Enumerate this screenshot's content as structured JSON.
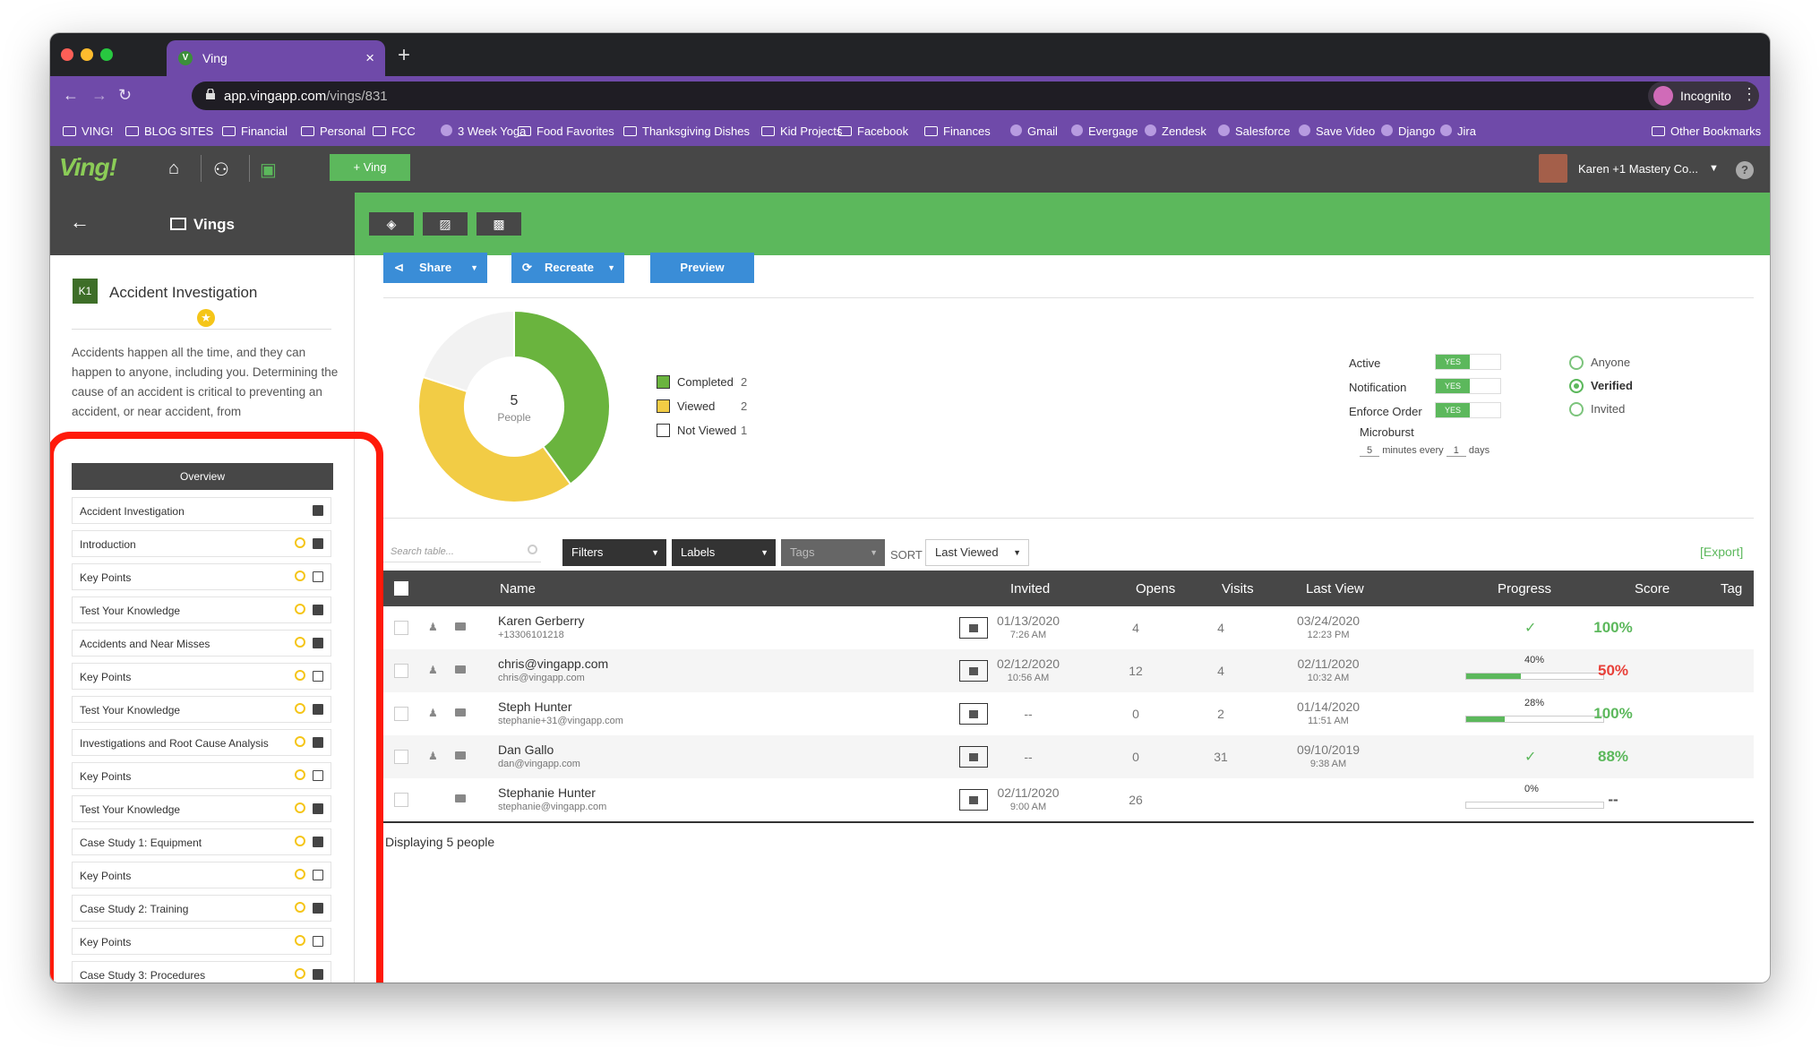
{
  "browser": {
    "tab_title": "Ving",
    "tab_icon": "V",
    "close_icon": "×",
    "new_tab_icon": "+",
    "url_host": "app.vingapp.com",
    "url_path": "/vings/831",
    "incognito_label": "Incognito",
    "bookmarks": [
      "VING!",
      "BLOG SITES",
      "Financial",
      "Personal",
      "FCC",
      "3 Week Yoga",
      "Food Favorites",
      "Thanksgiving Dishes",
      "Kid Projects",
      "Facebook",
      "Finances",
      "Gmail",
      "Evergage",
      "Zendesk",
      "Salesforce",
      "Save Video",
      "Django",
      "Jira"
    ],
    "other_bookmarks": "Other Bookmarks"
  },
  "header": {
    "logo": "Ving!",
    "add_ving_label": "+ Ving",
    "user_name": "Karen +1 Mastery Co...",
    "help_label": "?"
  },
  "sidebar": {
    "title": "Vings",
    "badge": "K1",
    "ving_title": "Accident Investigation",
    "description": "Accidents happen all the time, and they can happen to anyone, including you. Determining the cause of an accident is critical to preventing an accident, or near accident, from",
    "overview_label": "Overview",
    "items": [
      {
        "label": "Accident Investigation",
        "star": false,
        "type": "image"
      },
      {
        "label": "Introduction",
        "star": true,
        "type": "video"
      },
      {
        "label": "Key Points",
        "star": true,
        "type": "copy"
      },
      {
        "label": "Test Your Knowledge",
        "star": true,
        "type": "doc"
      },
      {
        "label": "Accidents and Near Misses",
        "star": true,
        "type": "video"
      },
      {
        "label": "Key Points",
        "star": true,
        "type": "copy"
      },
      {
        "label": "Test Your Knowledge",
        "star": true,
        "type": "doc"
      },
      {
        "label": "Investigations and Root Cause Analysis",
        "star": true,
        "type": "video"
      },
      {
        "label": "Key Points",
        "star": true,
        "type": "copy"
      },
      {
        "label": "Test Your Knowledge",
        "star": true,
        "type": "doc"
      },
      {
        "label": "Case Study 1: Equipment",
        "star": true,
        "type": "video"
      },
      {
        "label": "Key Points",
        "star": true,
        "type": "copy"
      },
      {
        "label": "Case Study 2: Training",
        "star": true,
        "type": "video"
      },
      {
        "label": "Key Points",
        "star": true,
        "type": "copy"
      },
      {
        "label": "Case Study 3: Procedures",
        "star": true,
        "type": "video"
      }
    ]
  },
  "actions": {
    "share": "Share",
    "recreate": "Recreate",
    "preview": "Preview"
  },
  "chart_data": {
    "type": "pie",
    "center_value": "5",
    "center_label": "People",
    "slices": [
      {
        "name": "Completed",
        "value": 2,
        "color": "#6ab43e"
      },
      {
        "name": "Viewed",
        "value": 2,
        "color": "#f2cc45"
      },
      {
        "name": "Not Viewed",
        "value": 1,
        "color": "#f2f2f2"
      }
    ]
  },
  "settings": {
    "active": "Active",
    "notification": "Notification",
    "enforce_order": "Enforce Order",
    "yes": "YES",
    "microburst": "Microburst",
    "mb_minutes": "5",
    "mb_minutes_label": "minutes every",
    "mb_days": "1",
    "mb_days_label": "days",
    "radios": [
      {
        "label": "Anyone",
        "on": false
      },
      {
        "label": "Verified",
        "on": true
      },
      {
        "label": "Invited",
        "on": false
      }
    ]
  },
  "filters": {
    "search_placeholder": "Search table...",
    "filters": "Filters",
    "labels": "Labels",
    "tags": "Tags",
    "sort": "SORT",
    "sort_value": "Last Viewed",
    "export": "[Export]"
  },
  "table": {
    "headers": {
      "name": "Name",
      "invited": "Invited",
      "opens": "Opens",
      "visits": "Visits",
      "last_view": "Last View",
      "progress": "Progress",
      "score": "Score",
      "tag": "Tag"
    },
    "rows": [
      {
        "name": "Karen Gerberry",
        "sub": "+13306101218",
        "invited_date": "01/13/2020",
        "invited_time": "7:26 AM",
        "opens": "4",
        "visits": "4",
        "last_date": "03/24/2020",
        "last_time": "12:23 PM",
        "progress_text": "",
        "progress": null,
        "done": true,
        "score": "100%",
        "score_color": "#5cb85c"
      },
      {
        "name": "chris@vingapp.com",
        "sub": "chris@vingapp.com",
        "invited_date": "02/12/2020",
        "invited_time": "10:56 AM",
        "opens": "12",
        "visits": "4",
        "last_date": "02/11/2020",
        "last_time": "10:32 AM",
        "progress_text": "40%",
        "progress": 0.4,
        "done": false,
        "score": "50%",
        "score_color": "#e8413a"
      },
      {
        "name": "Steph Hunter",
        "sub": "stephanie+31@vingapp.com",
        "invited_date": "--",
        "invited_time": "",
        "opens": "0",
        "visits": "2",
        "last_date": "01/14/2020",
        "last_time": "11:51 AM",
        "progress_text": "28%",
        "progress": 0.28,
        "done": false,
        "score": "100%",
        "score_color": "#5cb85c"
      },
      {
        "name": "Dan Gallo",
        "sub": "dan@vingapp.com",
        "invited_date": "--",
        "invited_time": "",
        "opens": "0",
        "visits": "31",
        "last_date": "09/10/2019",
        "last_time": "9:38 AM",
        "progress_text": "",
        "progress": null,
        "done": true,
        "score": "88%",
        "score_color": "#5cb85c"
      },
      {
        "name": "Stephanie Hunter",
        "sub": "stephanie@vingapp.com",
        "invited_date": "02/11/2020",
        "invited_time": "9:00 AM",
        "opens": "26",
        "visits": "",
        "last_date": "",
        "last_time": "",
        "progress_text": "0%",
        "progress": 0,
        "done": false,
        "score": "--",
        "score_color": "#555"
      }
    ],
    "footer": "Displaying 5 people"
  }
}
